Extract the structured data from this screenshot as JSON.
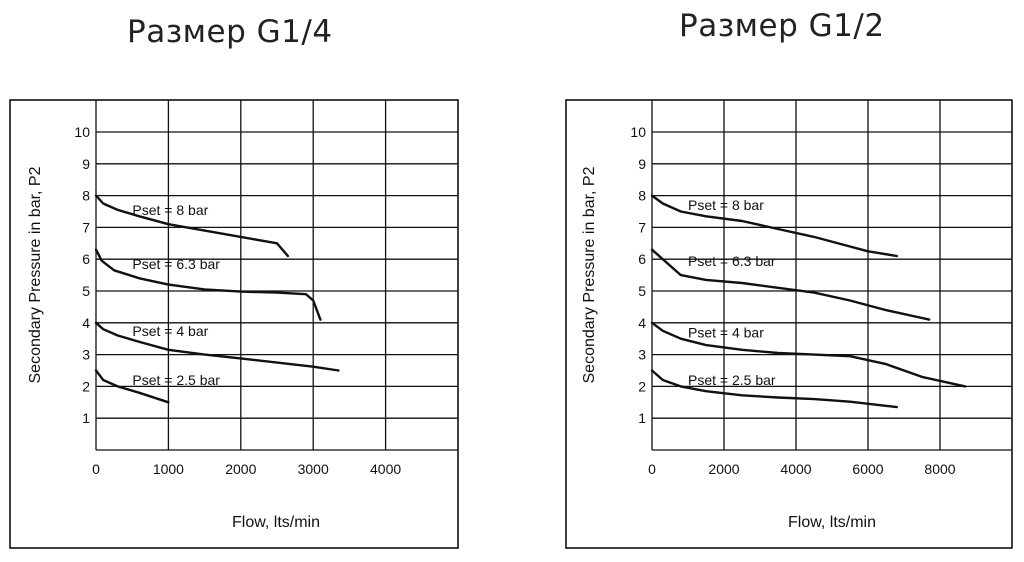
{
  "charts": [
    {
      "title": "Размер G1/4"
    },
    {
      "title": "Размер G1/2"
    }
  ],
  "chart_data": [
    {
      "type": "line",
      "title": "Размер G1/4",
      "xlabel": "Flow, lts/min",
      "ylabel": "Secondary Pressure in bar, P2",
      "xlim": [
        0,
        5000
      ],
      "ylim": [
        0,
        11
      ],
      "xticks": [
        0,
        1000,
        2000,
        3000,
        4000
      ],
      "yticks": [
        1,
        2,
        3,
        4,
        5,
        6,
        7,
        8,
        9,
        10
      ],
      "grid": true,
      "series": [
        {
          "name": "Pset = 8 bar",
          "x": [
            0,
            100,
            300,
            600,
            1000,
            1500,
            2000,
            2500,
            2650
          ],
          "y": [
            8.0,
            7.75,
            7.55,
            7.35,
            7.1,
            6.9,
            6.7,
            6.5,
            6.1
          ]
        },
        {
          "name": "Pset = 6.3 bar",
          "x": [
            0,
            80,
            250,
            600,
            1000,
            1500,
            2000,
            2500,
            2900,
            3000,
            3100
          ],
          "y": [
            6.3,
            5.95,
            5.65,
            5.4,
            5.2,
            5.05,
            4.98,
            4.95,
            4.9,
            4.7,
            4.1
          ]
        },
        {
          "name": "Pset = 4 bar",
          "x": [
            0,
            100,
            300,
            600,
            1000,
            1500,
            2000,
            2500,
            3000,
            3350
          ],
          "y": [
            4.0,
            3.8,
            3.6,
            3.4,
            3.15,
            3.0,
            2.88,
            2.75,
            2.62,
            2.5
          ]
        },
        {
          "name": "Pset = 2.5 bar",
          "x": [
            0,
            100,
            300,
            600,
            1000
          ],
          "y": [
            2.5,
            2.2,
            2.0,
            1.8,
            1.5
          ]
        }
      ]
    },
    {
      "type": "line",
      "title": "Размер G1/2",
      "xlabel": "Flow, lts/min",
      "ylabel": "Secondary Pressure in bar, P2",
      "xlim": [
        0,
        10000
      ],
      "ylim": [
        0,
        11
      ],
      "xticks": [
        0,
        2000,
        4000,
        6000,
        8000
      ],
      "yticks": [
        1,
        2,
        3,
        4,
        5,
        6,
        7,
        8,
        9,
        10
      ],
      "grid": true,
      "series": [
        {
          "name": "Pset = 8 bar",
          "x": [
            0,
            300,
            800,
            1500,
            2500,
            3500,
            4500,
            5500,
            6000,
            6800
          ],
          "y": [
            8.0,
            7.75,
            7.5,
            7.35,
            7.2,
            6.95,
            6.7,
            6.4,
            6.25,
            6.1
          ]
        },
        {
          "name": "Pset = 6.3 bar",
          "x": [
            0,
            300,
            800,
            1500,
            2500,
            3500,
            4500,
            5500,
            6500,
            7500,
            7700
          ],
          "y": [
            6.3,
            6.0,
            5.5,
            5.35,
            5.25,
            5.1,
            4.95,
            4.7,
            4.4,
            4.15,
            4.1
          ]
        },
        {
          "name": "Pset = 4 bar",
          "x": [
            0,
            300,
            800,
            1500,
            2500,
            3500,
            4500,
            5500,
            6500,
            7500,
            8700
          ],
          "y": [
            4.0,
            3.75,
            3.5,
            3.3,
            3.15,
            3.05,
            3.0,
            2.95,
            2.7,
            2.3,
            2.0
          ]
        },
        {
          "name": "Pset = 2.5 bar",
          "x": [
            0,
            300,
            800,
            1500,
            2500,
            3500,
            4500,
            5500,
            6800
          ],
          "y": [
            2.5,
            2.2,
            2.0,
            1.85,
            1.72,
            1.65,
            1.6,
            1.52,
            1.35
          ]
        }
      ]
    }
  ]
}
